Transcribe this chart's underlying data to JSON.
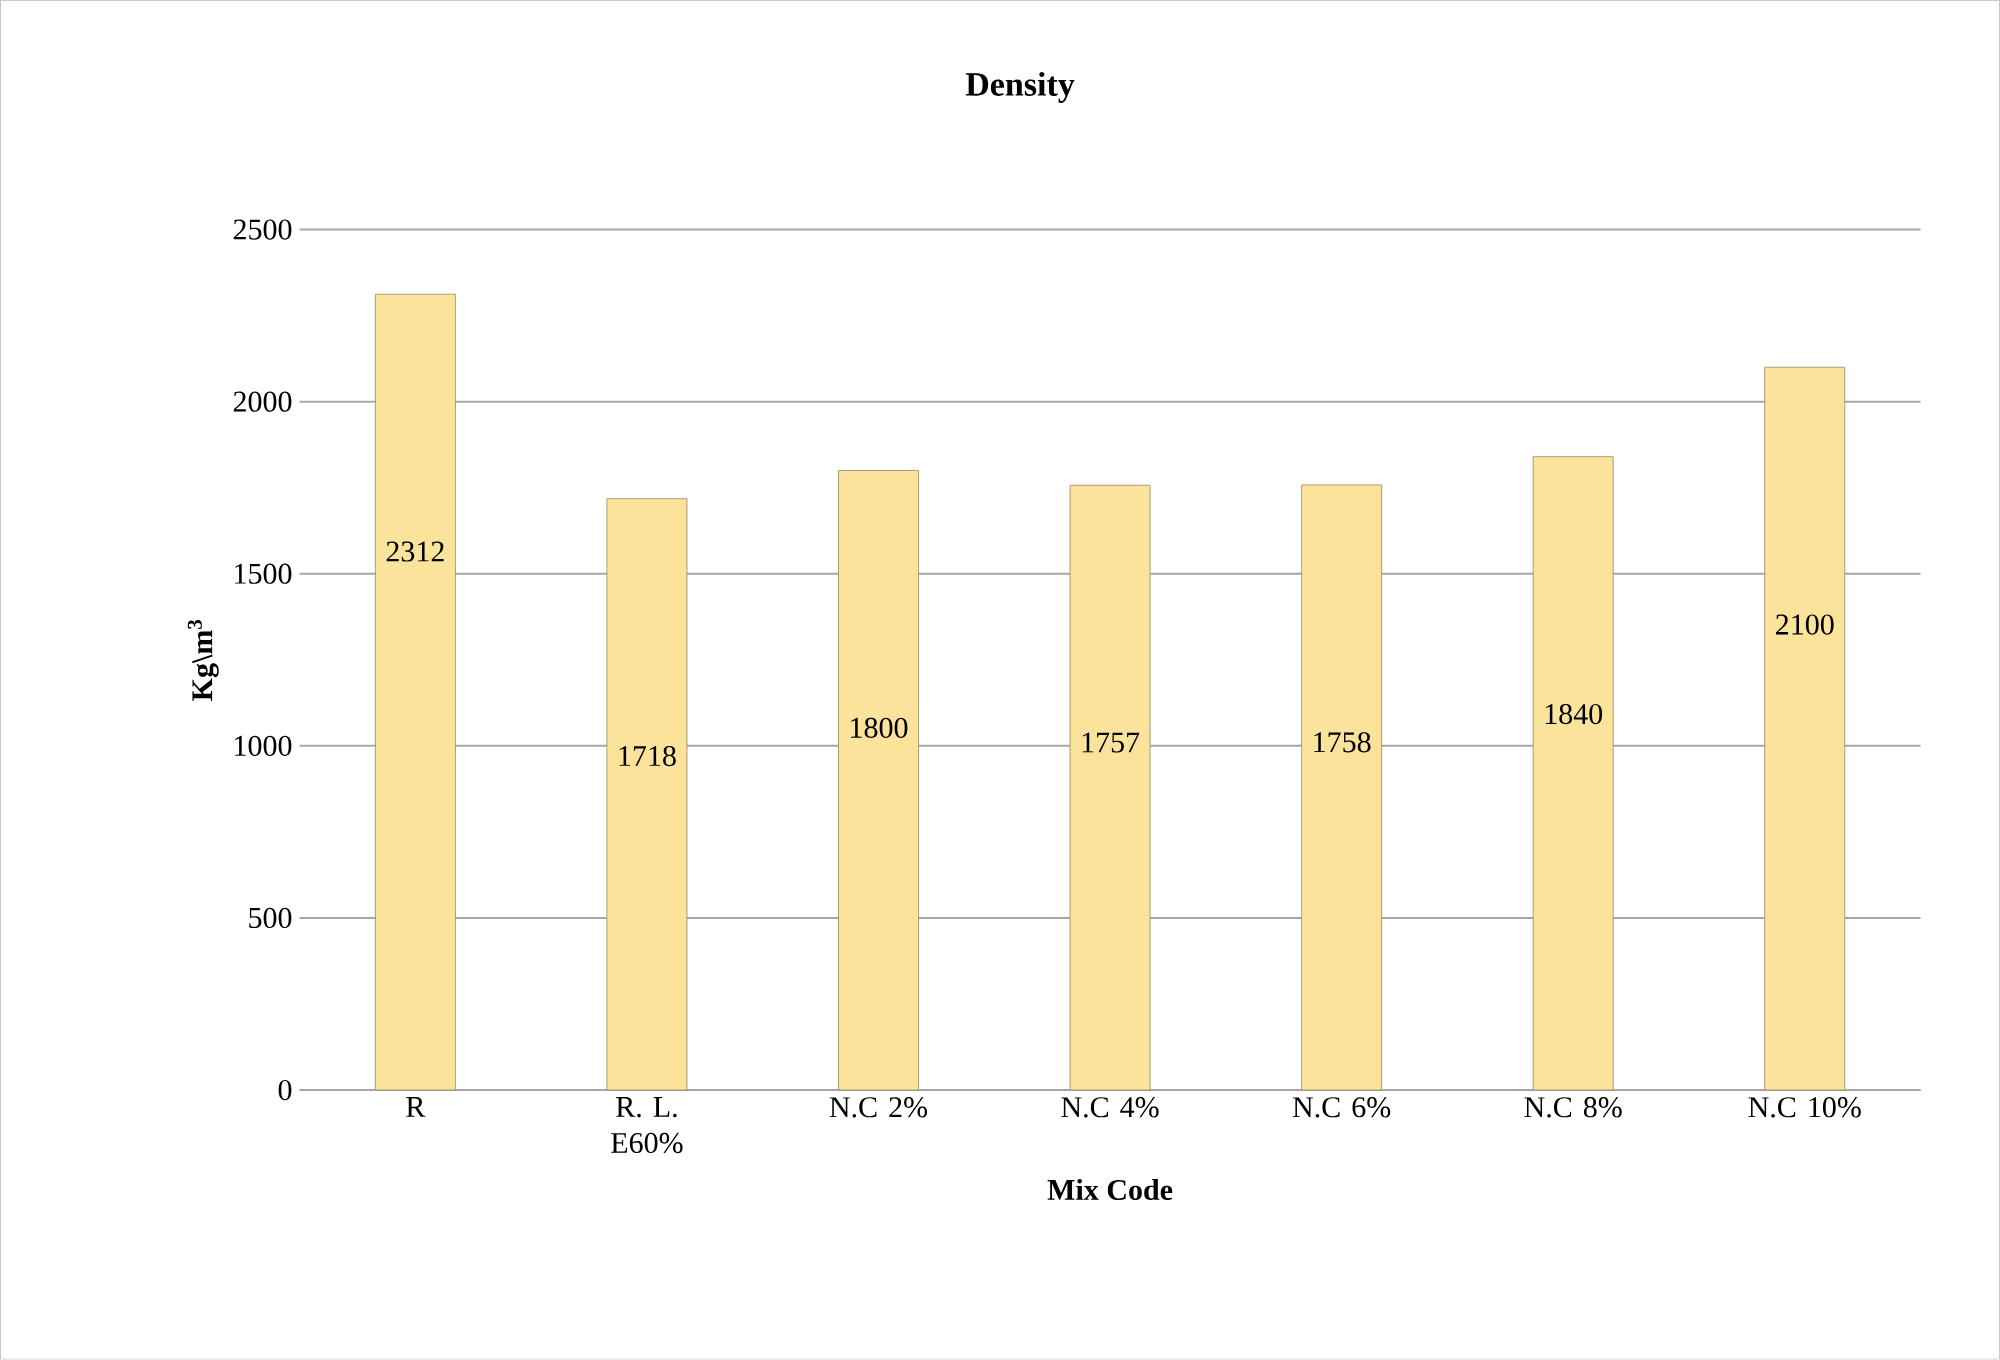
{
  "chart_data": {
    "type": "bar",
    "title": "Density",
    "xlabel": "Mix Code",
    "ylabel": "Kg\\m$^{3}$",
    "categories": [
      "R",
      "R. L. E60%",
      "N.C 2%",
      "N.C 4%",
      "N.C 6%",
      "N.C 8%",
      "N.C 10%"
    ],
    "values": [
      2312,
      1718,
      1800,
      1757,
      1758,
      1840,
      2100
    ],
    "color": "#fce39c",
    "ylim": [
      0,
      2500
    ],
    "yticks": [
      0,
      500,
      1000,
      1500,
      2000,
      2500
    ],
    "grid": "y",
    "data_labels": true
  }
}
